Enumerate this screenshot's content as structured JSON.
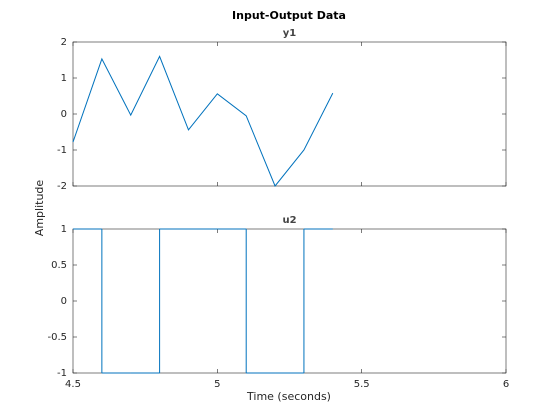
{
  "title": "Input-Output Data",
  "ylabel": "Amplitude",
  "xlabel": "Time (seconds)",
  "chart_data": [
    {
      "type": "line",
      "title": "y1",
      "color": "#0072bd",
      "x": [
        4.5,
        4.6,
        4.7,
        4.8,
        4.9,
        5.0,
        5.1,
        5.2,
        5.3,
        5.4
      ],
      "values": [
        -0.78,
        1.53,
        -0.03,
        1.6,
        -0.44,
        0.56,
        -0.05,
        -2.0,
        -1.0,
        0.58
      ],
      "xlim": [
        4.5,
        6
      ],
      "ylim": [
        -2,
        2
      ],
      "xticks": [
        4.5,
        5,
        5.5,
        6
      ],
      "yticks": [
        -2,
        -1,
        0,
        1,
        2
      ]
    },
    {
      "type": "stairs",
      "title": "u2",
      "color": "#0072bd",
      "x": [
        4.5,
        4.6,
        4.7,
        4.8,
        4.9,
        5.0,
        5.1,
        5.2,
        5.3,
        5.4
      ],
      "values": [
        1,
        -1,
        -1,
        1,
        1,
        1,
        -1,
        -1,
        1,
        1
      ],
      "xlim": [
        4.5,
        6
      ],
      "ylim": [
        -1,
        1
      ],
      "xticks": [
        4.5,
        5,
        5.5,
        6
      ],
      "yticks": [
        -1,
        -0.5,
        0,
        0.5,
        1
      ]
    }
  ]
}
